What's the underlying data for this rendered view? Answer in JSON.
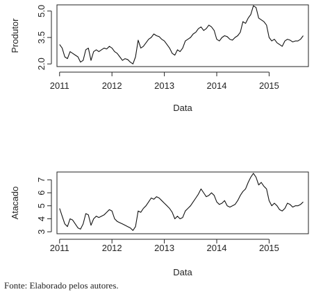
{
  "caption": "Fonte: Elaborado pelos autores.",
  "chart_data": [
    {
      "type": "line",
      "ylabel": "Produtor",
      "xlabel": "Data",
      "x_ticks": [
        "2011",
        "2012",
        "2013",
        "2014",
        "2015"
      ],
      "y_ticks": [
        "2.0",
        "3.5",
        "5.0"
      ],
      "y_tick_values": [
        2.0,
        3.5,
        5.0
      ],
      "x_tick_values": [
        2011,
        2012,
        2013,
        2014,
        2015
      ],
      "xlim": [
        2010.95,
        2015.75
      ],
      "ylim": [
        1.85,
        5.35
      ],
      "grid": false,
      "series": [
        {
          "x": [
            2011.0,
            2011.05,
            2011.1,
            2011.15,
            2011.2,
            2011.25,
            2011.3,
            2011.35,
            2011.4,
            2011.45,
            2011.5,
            2011.55,
            2011.6,
            2011.65,
            2011.7,
            2011.75,
            2011.8,
            2011.85,
            2011.9,
            2011.95,
            2012.0,
            2012.05,
            2012.1,
            2012.15,
            2012.2,
            2012.25,
            2012.3,
            2012.35,
            2012.4,
            2012.45,
            2012.5,
            2012.55,
            2012.6,
            2012.65,
            2012.7,
            2012.75,
            2012.8,
            2012.85,
            2012.9,
            2012.95,
            2013.0,
            2013.05,
            2013.1,
            2013.15,
            2013.2,
            2013.25,
            2013.3,
            2013.35,
            2013.4,
            2013.45,
            2013.5,
            2013.55,
            2013.6,
            2013.65,
            2013.7,
            2013.75,
            2013.8,
            2013.85,
            2013.9,
            2013.95,
            2014.0,
            2014.05,
            2014.1,
            2014.15,
            2014.2,
            2014.25,
            2014.3,
            2014.35,
            2014.4,
            2014.45,
            2014.5,
            2014.55,
            2014.6,
            2014.65,
            2014.7,
            2014.75,
            2014.8,
            2014.85,
            2014.9,
            2014.95,
            2015.0,
            2015.05,
            2015.1,
            2015.15,
            2015.2,
            2015.25,
            2015.3,
            2015.35,
            2015.4,
            2015.45,
            2015.5,
            2015.55,
            2015.6,
            2015.65
          ],
          "y": [
            3.1,
            2.9,
            2.4,
            2.3,
            2.7,
            2.6,
            2.5,
            2.4,
            2.1,
            2.2,
            2.8,
            2.9,
            2.2,
            2.7,
            2.8,
            2.7,
            2.8,
            2.9,
            2.85,
            3.0,
            2.9,
            2.7,
            2.6,
            2.4,
            2.2,
            2.3,
            2.25,
            2.1,
            2.0,
            2.4,
            3.35,
            2.9,
            3.0,
            3.2,
            3.4,
            3.5,
            3.7,
            3.6,
            3.55,
            3.4,
            3.3,
            3.1,
            2.9,
            2.6,
            2.5,
            2.8,
            2.7,
            2.9,
            3.3,
            3.4,
            3.5,
            3.7,
            3.8,
            4.0,
            4.1,
            3.9,
            4.0,
            4.2,
            4.1,
            3.9,
            3.4,
            3.3,
            3.5,
            3.6,
            3.55,
            3.4,
            3.35,
            3.5,
            3.6,
            3.8,
            4.4,
            4.3,
            4.6,
            4.8,
            5.3,
            5.2,
            4.6,
            4.5,
            4.4,
            4.2,
            3.5,
            3.3,
            3.4,
            3.2,
            3.1,
            3.0,
            3.3,
            3.4,
            3.35,
            3.25,
            3.3,
            3.3,
            3.4,
            3.6
          ]
        }
      ]
    },
    {
      "type": "line",
      "ylabel": "Atacado",
      "xlabel": "Data",
      "x_ticks": [
        "2011",
        "2012",
        "2013",
        "2014",
        "2015"
      ],
      "y_ticks": [
        "3",
        "4",
        "5",
        "6",
        "7"
      ],
      "y_tick_values": [
        3,
        4,
        5,
        6,
        7
      ],
      "x_tick_values": [
        2011,
        2012,
        2013,
        2014,
        2015
      ],
      "xlim": [
        2010.95,
        2015.75
      ],
      "ylim": [
        2.85,
        7.6
      ],
      "grid": false,
      "series": [
        {
          "x": [
            2011.0,
            2011.05,
            2011.1,
            2011.15,
            2011.2,
            2011.25,
            2011.3,
            2011.35,
            2011.4,
            2011.45,
            2011.5,
            2011.55,
            2011.6,
            2011.65,
            2011.7,
            2011.75,
            2011.8,
            2011.85,
            2011.9,
            2011.95,
            2012.0,
            2012.05,
            2012.1,
            2012.15,
            2012.2,
            2012.25,
            2012.3,
            2012.35,
            2012.4,
            2012.45,
            2012.5,
            2012.55,
            2012.6,
            2012.65,
            2012.7,
            2012.75,
            2012.8,
            2012.85,
            2012.9,
            2012.95,
            2013.0,
            2013.05,
            2013.1,
            2013.15,
            2013.2,
            2013.25,
            2013.3,
            2013.35,
            2013.4,
            2013.45,
            2013.5,
            2013.55,
            2013.6,
            2013.65,
            2013.7,
            2013.75,
            2013.8,
            2013.85,
            2013.9,
            2013.95,
            2014.0,
            2014.05,
            2014.1,
            2014.15,
            2014.2,
            2014.25,
            2014.3,
            2014.35,
            2014.4,
            2014.45,
            2014.5,
            2014.55,
            2014.6,
            2014.65,
            2014.7,
            2014.75,
            2014.8,
            2014.85,
            2014.9,
            2014.95,
            2015.0,
            2015.05,
            2015.1,
            2015.15,
            2015.2,
            2015.25,
            2015.3,
            2015.35,
            2015.4,
            2015.45,
            2015.5,
            2015.55,
            2015.6,
            2015.65
          ],
          "y": [
            4.8,
            4.2,
            3.6,
            3.4,
            4.0,
            3.9,
            3.6,
            3.3,
            3.2,
            3.6,
            4.4,
            4.3,
            3.5,
            4.0,
            4.2,
            4.1,
            4.2,
            4.3,
            4.5,
            4.7,
            4.6,
            4.0,
            3.8,
            3.7,
            3.6,
            3.5,
            3.4,
            3.3,
            3.1,
            3.4,
            4.6,
            4.5,
            4.8,
            5.0,
            5.3,
            5.6,
            5.5,
            5.7,
            5.6,
            5.4,
            5.2,
            5.0,
            4.8,
            4.5,
            4.0,
            4.2,
            4.0,
            4.1,
            4.6,
            4.8,
            5.0,
            5.3,
            5.6,
            5.9,
            6.3,
            6.0,
            5.7,
            5.8,
            6.0,
            5.8,
            5.3,
            5.1,
            5.2,
            5.4,
            5.0,
            4.9,
            5.0,
            5.1,
            5.4,
            5.8,
            6.1,
            6.3,
            6.8,
            7.2,
            7.5,
            7.2,
            6.6,
            6.8,
            6.5,
            6.3,
            5.4,
            5.0,
            5.2,
            5.0,
            4.7,
            4.6,
            4.8,
            5.2,
            5.1,
            4.9,
            5.0,
            5.0,
            5.1,
            5.3
          ]
        }
      ]
    }
  ]
}
